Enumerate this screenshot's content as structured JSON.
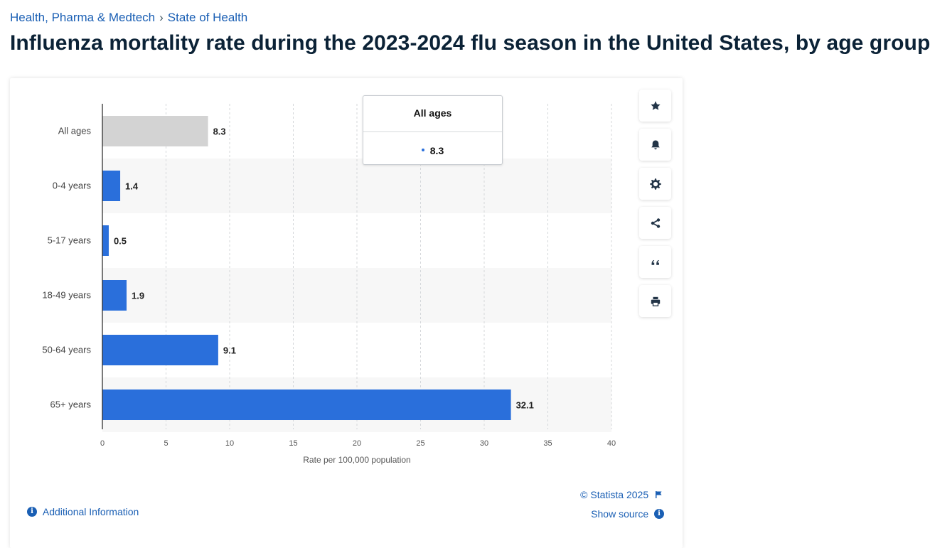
{
  "breadcrumb": {
    "items": [
      "Health, Pharma & Medtech",
      "State of Health"
    ],
    "separator": "›"
  },
  "page_title": "Influenza mortality rate during the 2023-2024 flu season in the United States, by age group",
  "tooltip": {
    "title": "All ages",
    "value": "8.3",
    "dot_color": "#2a6fdb"
  },
  "toolbar": {
    "icons": [
      "star-icon",
      "bell-icon",
      "gear-icon",
      "share-icon",
      "quote-icon",
      "print-icon"
    ]
  },
  "footer": {
    "additional_info": "Additional Information",
    "copyright": "© Statista 2025",
    "show_source": "Show source"
  },
  "colors": {
    "bar": "#2a6fdb",
    "bar_highlight": "#d3d3d3",
    "link": "#1a5fb4",
    "stripe": "#f7f7f7"
  },
  "chart_data": {
    "type": "bar",
    "orientation": "horizontal",
    "categories": [
      "All ages",
      "0-4 years",
      "5-17 years",
      "18-49 years",
      "50-64 years",
      "65+ years"
    ],
    "values": [
      8.3,
      1.4,
      0.5,
      1.9,
      9.1,
      32.1
    ],
    "value_labels": [
      "8.3",
      "1.4",
      "0.5",
      "1.9",
      "9.1",
      "32.1"
    ],
    "highlighted_category": "All ages",
    "xlabel": "Rate per 100,000 population",
    "xlim": [
      0,
      40
    ],
    "xticks": [
      0,
      5,
      10,
      15,
      20,
      25,
      30,
      35,
      40
    ],
    "grid": "vertical dashed"
  }
}
